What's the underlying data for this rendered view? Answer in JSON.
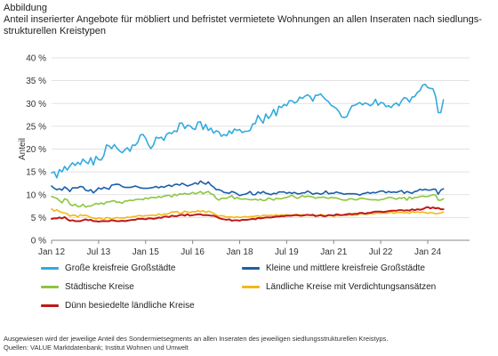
{
  "header": {
    "kicker": "Abbildung",
    "title": "Anteil inserierter Angebote für möbliert und befristet vermietete Wohnungen an allen Inseraten nach siedlungs-strukturellen Kreistypen"
  },
  "footer": {
    "note": "Ausgewiesen wird der jeweilige Anteil des Sondermietsegments an allen Inseraten des jeweiligen siedlungsstrukturellen Kreistyps.",
    "source": "Quellen: VALUE Marktdatenbank; Institut Wohnen und Umwelt"
  },
  "chart_data": {
    "type": "line",
    "title": "Anteil inserierter Angebote für möbliert und befristet vermietete Wohnungen an allen Inseraten nach siedlungs-strukturellen Kreistypen",
    "xlabel": "",
    "ylabel": "Anteil",
    "ylim": [
      0,
      40
    ],
    "y_ticks": [
      "0 %",
      "5 %",
      "10 %",
      "15 %",
      "20 %",
      "25 %",
      "30 %",
      "35 %",
      "40 %"
    ],
    "x_ticks": [
      "Jan 12",
      "Jul 13",
      "Jan 15",
      "Jul 16",
      "Jan 18",
      "Jul 19",
      "Jan 21",
      "Jul 22",
      "Jan 24"
    ],
    "x_tick_positions": [
      0,
      18,
      36,
      54,
      72,
      90,
      108,
      126,
      144
    ],
    "x_range": [
      0,
      160
    ],
    "grid": true,
    "legend_position": "bottom",
    "series": [
      {
        "name": "Große kreisfreie Großstädte",
        "color": "#33aadd",
        "values": [
          14.8,
          15.0,
          13.7,
          15.5,
          15.0,
          16.2,
          15.4,
          16.3,
          17.0,
          16.4,
          17.1,
          16.6,
          17.8,
          17.2,
          16.8,
          18.1,
          16.5,
          18.4,
          17.7,
          17.6,
          18.6,
          20.9,
          20.7,
          20.1,
          21.0,
          20.2,
          19.6,
          19.2,
          19.8,
          20.3,
          19.5,
          20.9,
          20.8,
          21.5,
          23.1,
          23.2,
          22.4,
          21.0,
          20.1,
          20.9,
          22.6,
          22.4,
          22.6,
          21.9,
          23.2,
          23.6,
          23.4,
          24.0,
          23.8,
          25.7,
          25.7,
          24.5,
          25.2,
          25.1,
          24.5,
          24.3,
          25.9,
          26.0,
          24.3,
          25.4,
          24.1,
          24.6,
          23.5,
          24.0,
          23.8,
          22.8,
          23.2,
          22.9,
          24.0,
          23.4,
          24.4,
          24.1,
          24.3,
          23.6,
          23.9,
          23.9,
          24.1,
          25.5,
          25.6,
          27.4,
          26.5,
          25.7,
          27.7,
          26.7,
          27.4,
          28.7,
          27.3,
          29.4,
          29.1,
          29.8,
          29.5,
          30.6,
          30.6,
          30.1,
          30.4,
          31.4,
          31.1,
          31.6,
          31.9,
          31.5,
          30.5,
          31.8,
          31.8,
          32.1,
          31.4,
          30.8,
          30.4,
          29.6,
          29.3,
          28.9,
          28.2,
          27.1,
          26.9,
          27.1,
          28.4,
          29.5,
          29.6,
          29.9,
          30.2,
          29.7,
          30.1,
          29.9,
          29.5,
          29.9,
          30.9,
          29.6,
          30.2,
          30.1,
          29.3,
          29.5,
          29.1,
          29.8,
          30.1,
          29.5,
          30.6,
          31.3,
          31.1,
          30.3,
          31.4,
          31.5,
          32.4,
          32.8,
          34.0,
          34.2,
          33.5,
          33.3,
          33.2,
          31.6,
          28.0,
          28.0,
          30.8
        ]
      },
      {
        "name": "Kleine und mittlere kreisfreie Großstädte",
        "color": "#1a5fa8",
        "values": [
          11.9,
          11.4,
          11.1,
          11.3,
          11.0,
          11.7,
          11.3,
          10.7,
          11.5,
          11.5,
          11.5,
          11.8,
          11.7,
          11.0,
          10.8,
          11.1,
          10.4,
          10.9,
          11.5,
          11.2,
          11.6,
          11.4,
          11.2,
          12.1,
          12.2,
          12.3,
          12.2,
          11.8,
          11.6,
          11.6,
          11.6,
          11.7,
          11.9,
          11.7,
          11.5,
          11.4,
          11.4,
          11.4,
          11.5,
          11.6,
          11.8,
          11.5,
          11.8,
          11.6,
          11.9,
          12.1,
          11.8,
          12.2,
          12.3,
          12.1,
          12.5,
          12.2,
          11.9,
          12.1,
          12.3,
          12.6,
          12.3,
          13.0,
          12.6,
          12.3,
          12.8,
          12.1,
          11.7,
          11.1,
          11.1,
          10.9,
          10.5,
          10.4,
          10.3,
          10.7,
          10.5,
          10.2,
          9.8,
          10.0,
          10.1,
          10.3,
          10.7,
          10.0,
          10.0,
          10.6,
          10.3,
          10.7,
          10.3,
          10.2,
          10.0,
          10.3,
          10.2,
          10.6,
          10.6,
          10.6,
          10.3,
          10.5,
          10.3,
          10.5,
          10.2,
          10.2,
          10.4,
          10.4,
          10.8,
          10.5,
          10.1,
          10.3,
          10.3,
          10.1,
          10.3,
          10.8,
          10.2,
          10.3,
          10.3,
          10.6,
          10.4,
          10.3,
          10.1,
          10.2,
          10.2,
          10.2,
          10.2,
          10.1,
          9.9,
          10.2,
          10.3,
          10.5,
          10.3,
          10.5,
          10.4,
          10.6,
          10.8,
          10.8,
          10.4,
          10.7,
          10.5,
          10.6,
          10.5,
          10.7,
          10.9,
          10.3,
          10.7,
          10.5,
          10.3,
          10.7,
          10.8,
          11.2,
          11.0,
          11.2,
          11.0,
          11.0,
          11.2,
          11.2,
          10.1,
          11.0,
          11.3
        ]
      },
      {
        "name": "Städtische Kreise",
        "color": "#8cc63f",
        "values": [
          9.6,
          9.4,
          9.2,
          8.7,
          8.2,
          9.1,
          8.9,
          7.9,
          7.6,
          7.9,
          7.4,
          7.4,
          7.9,
          7.3,
          7.5,
          7.5,
          7.8,
          8.1,
          7.9,
          8.2,
          7.9,
          8.4,
          8.4,
          8.6,
          8.7,
          8.3,
          8.4,
          8.1,
          8.6,
          8.6,
          8.8,
          8.7,
          8.9,
          9.0,
          9.0,
          8.9,
          9.3,
          9.1,
          9.4,
          9.4,
          9.3,
          9.6,
          9.4,
          9.7,
          9.8,
          9.9,
          9.5,
          10.1,
          9.8,
          10.2,
          10.1,
          10.3,
          10.1,
          10.2,
          10.5,
          10.2,
          10.4,
          10.7,
          10.2,
          10.5,
          10.7,
          10.2,
          10.0,
          9.2,
          8.8,
          9.2,
          9.2,
          9.2,
          9.5,
          9.8,
          9.1,
          9.4,
          9.1,
          9.0,
          9.1,
          9.0,
          8.9,
          8.9,
          9.0,
          8.8,
          9.0,
          8.7,
          8.8,
          9.3,
          9.1,
          8.8,
          9.2,
          9.1,
          9.1,
          9.3,
          9.4,
          9.6,
          9.9,
          9.5,
          9.2,
          9.4,
          9.8,
          9.5,
          9.7,
          9.6,
          9.5,
          9.2,
          9.4,
          9.4,
          9.5,
          9.3,
          9.2,
          9.4,
          9.3,
          9.3,
          9.1,
          8.9,
          8.8,
          8.8,
          9.1,
          9.1,
          8.9,
          8.9,
          9.2,
          9.2,
          9.1,
          9.0,
          8.9,
          8.9,
          8.9,
          8.8,
          8.9,
          9.0,
          9.2,
          9.4,
          9.4,
          9.2,
          9.0,
          9.3,
          9.2,
          9.4,
          8.8,
          9.5,
          9.1,
          9.4,
          9.4,
          9.6,
          9.7,
          9.6,
          9.6,
          9.8,
          10.0,
          9.9,
          8.8,
          8.8,
          9.1
        ]
      },
      {
        "name": "Ländliche Kreise mit Verdichtungsansätzen",
        "color": "#f2b817",
        "values": [
          6.9,
          6.4,
          6.7,
          6.3,
          6.1,
          6.0,
          5.8,
          5.3,
          5.5,
          5.5,
          5.1,
          5.6,
          5.4,
          5.5,
          5.3,
          5.0,
          4.9,
          4.7,
          4.9,
          4.8,
          4.5,
          5.0,
          4.9,
          4.6,
          4.8,
          5.0,
          4.9,
          4.9,
          4.9,
          5.1,
          5.0,
          5.2,
          5.2,
          5.4,
          5.4,
          5.3,
          5.4,
          5.4,
          5.5,
          5.5,
          5.4,
          5.8,
          5.5,
          5.8,
          5.7,
          5.9,
          6.2,
          6.2,
          6.3,
          5.9,
          6.0,
          6.4,
          6.2,
          6.1,
          6.3,
          6.2,
          6.5,
          6.3,
          6.5,
          6.1,
          6.4,
          6.2,
          5.9,
          5.6,
          5.3,
          5.4,
          5.3,
          5.1,
          5.1,
          5.1,
          5.0,
          5.2,
          5.0,
          5.1,
          5.2,
          5.1,
          5.2,
          5.2,
          5.3,
          5.4,
          5.2,
          5.5,
          5.5,
          5.4,
          5.5,
          5.4,
          5.6,
          5.4,
          5.6,
          5.5,
          5.6,
          5.5,
          5.5,
          5.6,
          5.7,
          5.5,
          5.6,
          5.6,
          5.6,
          5.5,
          5.4,
          5.5,
          5.3,
          5.7,
          5.5,
          5.4,
          5.6,
          5.4,
          5.3,
          5.4,
          5.4,
          5.5,
          5.5,
          5.4,
          5.6,
          5.5,
          5.6,
          5.5,
          5.8,
          5.8,
          5.8,
          5.7,
          5.9,
          5.8,
          5.9,
          6.0,
          5.9,
          6.0,
          5.9,
          6.0,
          6.2,
          5.9,
          6.1,
          6.1,
          6.1,
          6.0,
          6.1,
          5.9,
          6.3,
          6.1,
          6.2,
          6.1,
          6.2,
          6.1,
          5.9,
          6.1,
          6.0,
          5.8,
          5.9,
          6.0,
          6.2
        ]
      },
      {
        "name": "Dünn besiedelte ländliche Kreise",
        "color": "#c01818",
        "values": [
          4.7,
          4.8,
          4.8,
          5.0,
          4.8,
          5.1,
          4.6,
          4.3,
          4.4,
          4.2,
          4.2,
          4.2,
          4.4,
          4.6,
          4.4,
          4.5,
          4.2,
          4.2,
          4.1,
          4.2,
          4.2,
          4.2,
          4.2,
          4.4,
          4.3,
          4.2,
          4.2,
          4.3,
          4.2,
          4.3,
          4.4,
          4.5,
          4.5,
          4.7,
          4.7,
          4.7,
          4.6,
          4.8,
          4.8,
          4.7,
          4.8,
          5.0,
          4.9,
          5.2,
          5.2,
          5.1,
          5.4,
          5.3,
          5.3,
          5.5,
          5.6,
          5.4,
          5.7,
          5.4,
          5.5,
          5.6,
          5.7,
          5.7,
          5.5,
          5.5,
          5.5,
          5.4,
          5.4,
          5.2,
          4.9,
          4.7,
          4.6,
          4.5,
          4.6,
          4.3,
          4.4,
          4.4,
          4.3,
          4.5,
          4.5,
          4.5,
          4.6,
          4.7,
          4.6,
          4.9,
          4.8,
          4.9,
          5.0,
          5.0,
          5.0,
          5.1,
          5.2,
          5.2,
          5.3,
          5.3,
          5.4,
          5.4,
          5.4,
          5.5,
          5.5,
          5.4,
          5.4,
          5.5,
          5.6,
          5.5,
          5.6,
          5.3,
          5.4,
          5.5,
          5.3,
          5.3,
          5.5,
          5.5,
          5.4,
          5.7,
          5.6,
          5.5,
          5.6,
          5.7,
          5.8,
          5.7,
          5.8,
          5.8,
          6.0,
          6.0,
          5.8,
          6.0,
          6.0,
          6.2,
          6.3,
          6.3,
          6.3,
          6.2,
          6.3,
          6.4,
          6.5,
          6.5,
          6.5,
          6.6,
          6.6,
          6.5,
          6.6,
          6.5,
          6.8,
          6.6,
          6.8,
          6.7,
          6.8,
          7.1,
          7.3,
          7.0,
          7.2,
          7.0,
          7.1,
          6.8,
          6.8
        ]
      }
    ]
  }
}
